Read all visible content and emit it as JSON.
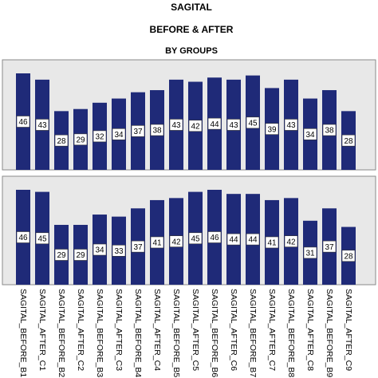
{
  "chart_data": {
    "type": "bar",
    "title_lines": [
      "SAGITAL",
      "BEFORE & AFTER",
      "BY GROUPS"
    ],
    "categories": [
      "SAGITAL_BEFORE_B1",
      "SAGITAL_AFTER_C1",
      "SAGITAL_BEFORE_B2",
      "SAGITAL_AFTER_C2",
      "SAGITAL_BEFORE_B3",
      "SAGITAL_AFTER_C3",
      "SAGITAL_BEFORE_B4",
      "SAGITAL_AFTER_C4",
      "SAGITAL_BEFORE_B5",
      "SAGITAL_AFTER_C5",
      "SAGITAL_BEFORE_B6",
      "SAGITAL_AFTER_C6",
      "SAGITAL_BEFORE_B7",
      "SAGITAL_AFTER_C7",
      "SAGITAL_BEFORE_B8",
      "SAGITAL_AFTER_C8",
      "SAGITAL_BEFORE_B9",
      "SAGITAL_AFTER_C9"
    ],
    "panels": [
      {
        "values": [
          46,
          43,
          28,
          29,
          32,
          34,
          37,
          38,
          43,
          42,
          44,
          43,
          45,
          39,
          43,
          34,
          38,
          28
        ]
      },
      {
        "values": [
          46,
          45,
          29,
          29,
          34,
          33,
          37,
          41,
          42,
          45,
          46,
          44,
          44,
          41,
          42,
          31,
          37,
          28
        ]
      }
    ],
    "color": "#1f2a78"
  }
}
